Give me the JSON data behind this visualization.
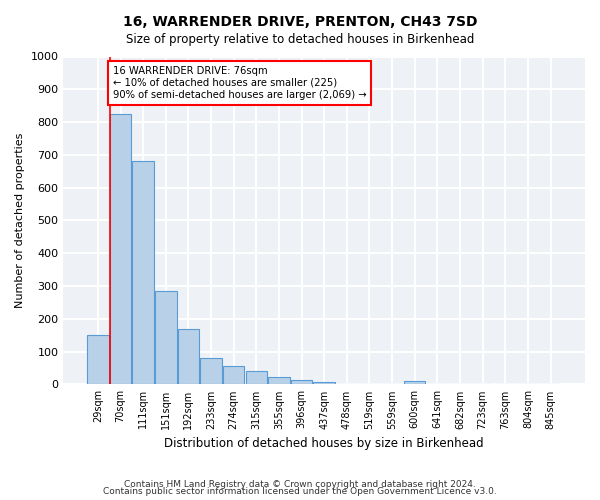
{
  "title": "16, WARRENDER DRIVE, PRENTON, CH43 7SD",
  "subtitle": "Size of property relative to detached houses in Birkenhead",
  "xlabel": "Distribution of detached houses by size in Birkenhead",
  "ylabel": "Number of detached properties",
  "bar_color": "#b8d0e8",
  "bar_edge_color": "#5b9bd5",
  "background_color": "#eef2f7",
  "grid_color": "#ffffff",
  "bin_labels": [
    "29sqm",
    "70sqm",
    "111sqm",
    "151sqm",
    "192sqm",
    "233sqm",
    "274sqm",
    "315sqm",
    "355sqm",
    "396sqm",
    "437sqm",
    "478sqm",
    "519sqm",
    "559sqm",
    "600sqm",
    "641sqm",
    "682sqm",
    "723sqm",
    "763sqm",
    "804sqm",
    "845sqm"
  ],
  "bar_heights": [
    150,
    825,
    680,
    285,
    170,
    80,
    55,
    42,
    22,
    12,
    8,
    0,
    0,
    0,
    10,
    0,
    0,
    0,
    0,
    0,
    0
  ],
  "property_line_x": 0.55,
  "annotation_text": "16 WARRENDER DRIVE: 76sqm\n← 10% of detached houses are smaller (225)\n90% of semi-detached houses are larger (2,069) →",
  "ylim": [
    0,
    1000
  ],
  "yticks": [
    0,
    100,
    200,
    300,
    400,
    500,
    600,
    700,
    800,
    900,
    1000
  ],
  "footer_line1": "Contains HM Land Registry data © Crown copyright and database right 2024.",
  "footer_line2": "Contains public sector information licensed under the Open Government Licence v3.0."
}
